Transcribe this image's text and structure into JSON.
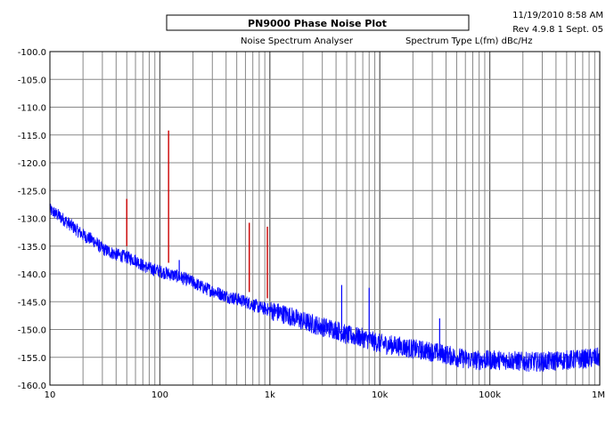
{
  "header": {
    "title": "PN9000  Phase Noise Plot",
    "date_time": "11/19/2010   8:58 AM",
    "revision": "Rev 4.9.8 1 Sept. 05",
    "subtitle": "Noise Spectrum Analyser",
    "spectrum_type": "Spectrum Type  L(fm) dBc/Hz"
  },
  "chart_data": {
    "type": "line",
    "title": "PN9000  Phase Noise Plot",
    "subtitle": "Noise Spectrum Analyser",
    "xlabel": "",
    "ylabel": "",
    "xscale": "log",
    "xlim": [
      10,
      1000000
    ],
    "ylim": [
      -160,
      -100
    ],
    "grid": true,
    "x_tick_labels": [
      "10",
      "100",
      "1k",
      "10k",
      "100k",
      "1M"
    ],
    "y_tick_labels": [
      "-100.0",
      "-105.0",
      "-110.0",
      "-115.0",
      "-120.0",
      "-125.0",
      "-130.0",
      "-135.0",
      "-140.0",
      "-145.0",
      "-150.0",
      "-155.0",
      "-160.0"
    ],
    "y_ticks": [
      -100,
      -105,
      -110,
      -115,
      -120,
      -125,
      -130,
      -135,
      -140,
      -145,
      -150,
      -155,
      -160
    ],
    "series": [
      {
        "color": "#0000ff",
        "x": [
          10,
          12,
          15,
          20,
          25,
          30,
          40,
          50,
          60,
          70,
          80,
          100,
          120,
          150,
          200,
          250,
          300,
          400,
          500,
          600,
          700,
          800,
          1000,
          1500,
          2000,
          3000,
          4000,
          5000,
          7000,
          10000,
          15000,
          20000,
          30000,
          40000,
          50000,
          70000,
          100000,
          150000,
          200000,
          300000,
          500000,
          700000,
          1000000
        ],
        "y": [
          -128.5,
          -129.5,
          -131,
          -133,
          -134,
          -135.5,
          -136.5,
          -137,
          -137.5,
          -138.5,
          -139,
          -139.5,
          -140,
          -140.5,
          -141.5,
          -142.5,
          -143,
          -144,
          -144.5,
          -145,
          -145.5,
          -146,
          -146.5,
          -147.5,
          -148.5,
          -149.5,
          -150,
          -151,
          -151.5,
          -152.5,
          -153,
          -153.5,
          -154,
          -154.5,
          -155,
          -155.5,
          -155.5,
          -155.5,
          -155.8,
          -155.8,
          -155.5,
          -155.3,
          -155
        ]
      },
      {
        "color": "#cc0000",
        "spurs": [
          {
            "x": 50,
            "y": -126.5
          },
          {
            "x": 120,
            "y": -114.2
          },
          {
            "x": 650,
            "y": -130.8
          },
          {
            "x": 950,
            "y": -131.5
          }
        ]
      }
    ],
    "blue_spurs": [
      {
        "x": 150,
        "y": -137.5
      },
      {
        "x": 4500,
        "y": -142
      },
      {
        "x": 8000,
        "y": -142.5
      },
      {
        "x": 35000,
        "y": -148
      }
    ]
  }
}
